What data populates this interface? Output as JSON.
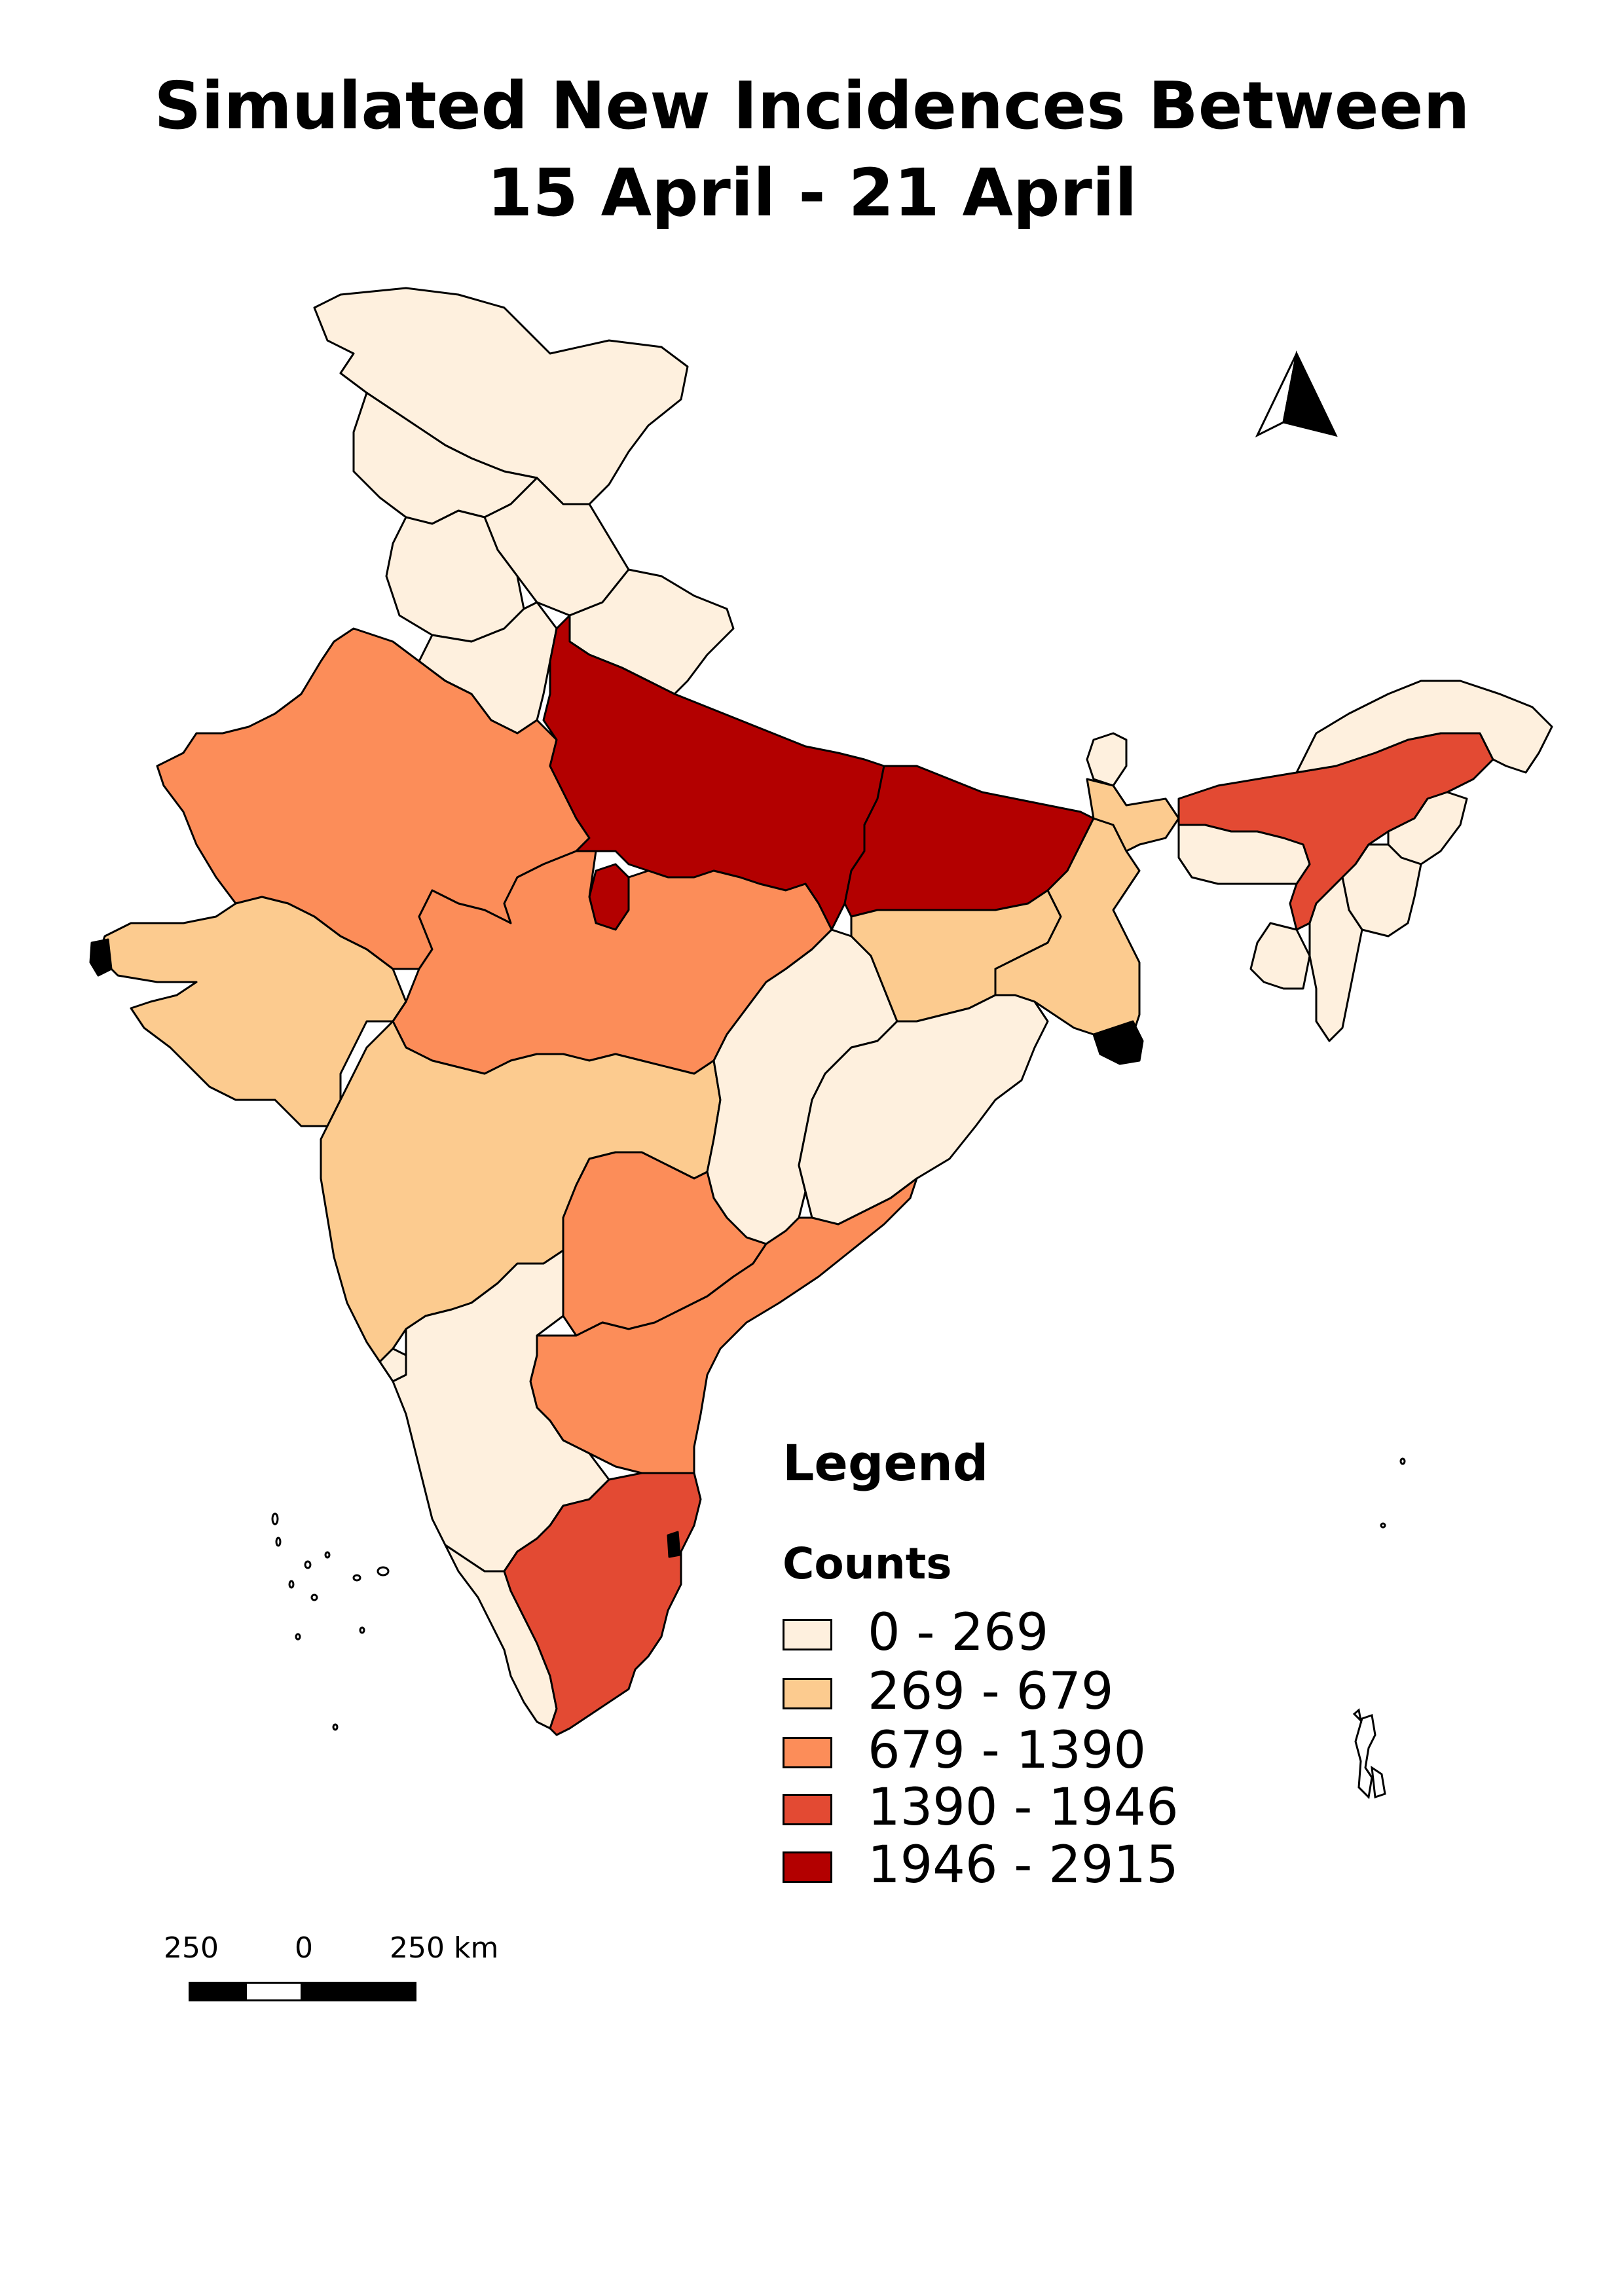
{
  "title": {
    "line1": "Simulated New Incidences Between",
    "line2": "15 April - 21 April"
  },
  "legend": {
    "heading": "Legend",
    "subtitle": "Counts",
    "classes": [
      {
        "label": "0 - 269",
        "color": "#fef0de"
      },
      {
        "label": "269 - 679",
        "color": "#fccb8f"
      },
      {
        "label": "679 - 1390",
        "color": "#fc8d59"
      },
      {
        "label": "1390 - 1946",
        "color": "#e34a33"
      },
      {
        "label": "1946 - 2915",
        "color": "#b30000"
      }
    ]
  },
  "scale_bar": {
    "left_label": "250",
    "mid_label": "0",
    "right_label": "250 km"
  },
  "north_arrow": {
    "icon": "north-arrow-icon"
  },
  "outline_color": "#000000"
}
